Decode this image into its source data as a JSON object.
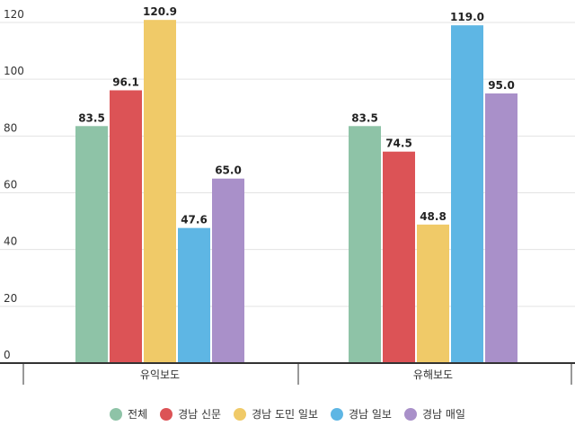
{
  "chart_data": {
    "type": "bar",
    "categories": [
      "유익보도",
      "유해보도"
    ],
    "series": [
      {
        "name": "전체",
        "color": "#8ec3a7",
        "values": [
          83.5,
          83.5
        ]
      },
      {
        "name": "경남 신문",
        "color": "#dc5356",
        "values": [
          96.1,
          74.5
        ]
      },
      {
        "name": "경남 도민 일보",
        "color": "#f0ca68",
        "values": [
          120.9,
          48.8
        ]
      },
      {
        "name": "경남 일보",
        "color": "#5eb6e4",
        "values": [
          47.6,
          119.0
        ]
      },
      {
        "name": "경남 매일",
        "color": "#a990c9",
        "values": [
          65.0,
          95.0
        ]
      }
    ],
    "ylim": [
      0,
      120
    ],
    "yticks": [
      0,
      20,
      40,
      60,
      80,
      100,
      120
    ],
    "grid": true,
    "legend_position": "bottom",
    "xlabel": "",
    "ylabel": "",
    "title": ""
  }
}
